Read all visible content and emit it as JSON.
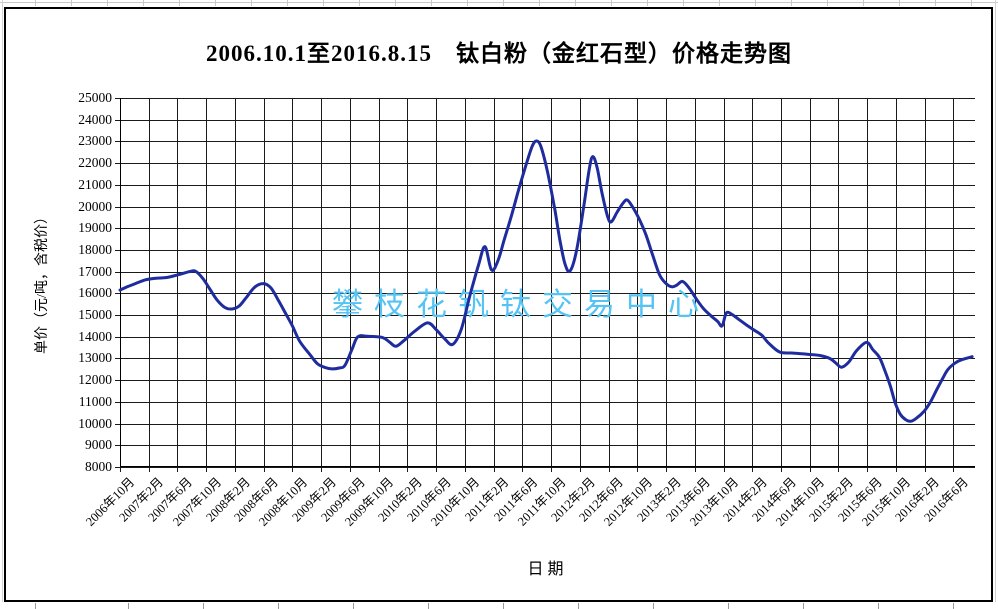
{
  "chart_data": {
    "type": "line",
    "title": "2006.10.1至2016.8.15　钛白粉（金红石型）价格走势图",
    "xlabel": "日期",
    "ylabel": "单价（元/吨，含税价）",
    "grid": true,
    "legend_position": "none",
    "xlim": [
      0,
      119
    ],
    "ylim": [
      8000,
      25000
    ],
    "y_tick_step": 1000,
    "y_ticks": [
      8000,
      9000,
      10000,
      11000,
      12000,
      13000,
      14000,
      15000,
      16000,
      17000,
      18000,
      19000,
      20000,
      21000,
      22000,
      23000,
      24000,
      25000
    ],
    "x_tick_positions": [
      0,
      4,
      8,
      12,
      16,
      20,
      24,
      28,
      32,
      36,
      40,
      44,
      48,
      52,
      56,
      60,
      64,
      68,
      72,
      76,
      80,
      84,
      88,
      92,
      96,
      100,
      104,
      108,
      112,
      116
    ],
    "x_tick_labels": [
      "2006年10月",
      "2007年2月",
      "2007年6月",
      "2007年10月",
      "2008年2月",
      "2008年6月",
      "2008年10月",
      "2009年2月",
      "2009年6月",
      "2009年10月",
      "2010年2月",
      "2010年6月",
      "2010年10月",
      "2011年2月",
      "2011年6月",
      "2011年10月",
      "2012年2月",
      "2012年6月",
      "2012年10月",
      "2013年2月",
      "2013年6月",
      "2013年10月",
      "2014年2月",
      "2014年6月",
      "2014年10月",
      "2015年2月",
      "2015年6月",
      "2015年10月",
      "2016年2月",
      "2016年6月"
    ],
    "watermark": {
      "text": "攀枝花钒钛交易中心",
      "color": "#55c3f3"
    },
    "colors": {
      "line": "#1f2c9e",
      "grid": "#1a1a1a",
      "text": "#000000"
    },
    "series": [
      {
        "name": "钛白粉（金红石型）价格（元/吨）",
        "color": "#1f2c9e",
        "x_unit": "months since 2006-10",
        "points": [
          [
            0,
            16150
          ],
          [
            1,
            16300
          ],
          [
            2,
            16430
          ],
          [
            3.5,
            16620
          ],
          [
            5,
            16700
          ],
          [
            6.5,
            16730
          ],
          [
            8,
            16850
          ],
          [
            9.7,
            17000
          ],
          [
            10.5,
            17020
          ],
          [
            11.5,
            16700
          ],
          [
            12.5,
            16200
          ],
          [
            13.5,
            15700
          ],
          [
            14.6,
            15350
          ],
          [
            15.6,
            15280
          ],
          [
            16.6,
            15420
          ],
          [
            17.6,
            15820
          ],
          [
            18.8,
            16300
          ],
          [
            20,
            16450
          ],
          [
            21,
            16250
          ],
          [
            22,
            15700
          ],
          [
            23,
            15100
          ],
          [
            24,
            14500
          ],
          [
            25,
            13800
          ],
          [
            26.5,
            13150
          ],
          [
            27.5,
            12750
          ],
          [
            28.5,
            12590
          ],
          [
            29.5,
            12520
          ],
          [
            30.5,
            12560
          ],
          [
            31.3,
            12680
          ],
          [
            32.3,
            13430
          ],
          [
            33.1,
            14000
          ],
          [
            34.5,
            14020
          ],
          [
            36.5,
            13970
          ],
          [
            37.5,
            13760
          ],
          [
            38.4,
            13560
          ],
          [
            39.5,
            13820
          ],
          [
            41,
            14250
          ],
          [
            42.8,
            14640
          ],
          [
            44,
            14330
          ],
          [
            45.2,
            13900
          ],
          [
            46.3,
            13650
          ],
          [
            47.5,
            14350
          ],
          [
            48.7,
            15900
          ],
          [
            49.9,
            17300
          ],
          [
            50.8,
            18150
          ],
          [
            51.7,
            17080
          ],
          [
            52.6,
            17500
          ],
          [
            53.5,
            18500
          ],
          [
            54.5,
            19600
          ],
          [
            55.5,
            20800
          ],
          [
            56.5,
            21900
          ],
          [
            57.4,
            22800
          ],
          [
            58,
            23020
          ],
          [
            58.6,
            22750
          ],
          [
            59.5,
            21600
          ],
          [
            60.5,
            19900
          ],
          [
            61.2,
            18500
          ],
          [
            61.9,
            17400
          ],
          [
            62.6,
            17020
          ],
          [
            63.5,
            17900
          ],
          [
            64.5,
            19900
          ],
          [
            65.3,
            21700
          ],
          [
            65.8,
            22300
          ],
          [
            66.4,
            21800
          ],
          [
            67.1,
            20600
          ],
          [
            67.9,
            19500
          ],
          [
            68.4,
            19300
          ],
          [
            69.2,
            19750
          ],
          [
            70,
            20150
          ],
          [
            70.6,
            20300
          ],
          [
            71.4,
            19950
          ],
          [
            72.3,
            19400
          ],
          [
            73.2,
            18700
          ],
          [
            74.1,
            17800
          ],
          [
            75.1,
            16850
          ],
          [
            76,
            16450
          ],
          [
            76.8,
            16300
          ],
          [
            77.5,
            16380
          ],
          [
            78.3,
            16550
          ],
          [
            79.2,
            16250
          ],
          [
            80.2,
            15750
          ],
          [
            81.2,
            15300
          ],
          [
            82.3,
            14950
          ],
          [
            83.2,
            14700
          ],
          [
            83.8,
            14500
          ],
          [
            84.4,
            15100
          ],
          [
            85.2,
            15020
          ],
          [
            86.2,
            14780
          ],
          [
            87.3,
            14520
          ],
          [
            88.3,
            14300
          ],
          [
            89.3,
            14080
          ],
          [
            90.3,
            13700
          ],
          [
            91.8,
            13300
          ],
          [
            93.5,
            13250
          ],
          [
            95.5,
            13200
          ],
          [
            97.5,
            13130
          ],
          [
            98.8,
            13000
          ],
          [
            99.6,
            12800
          ],
          [
            100.4,
            12600
          ],
          [
            101.4,
            12820
          ],
          [
            102.5,
            13350
          ],
          [
            103.9,
            13740
          ],
          [
            104.8,
            13400
          ],
          [
            105.7,
            13050
          ],
          [
            106.5,
            12400
          ],
          [
            107.2,
            11750
          ],
          [
            107.9,
            10950
          ],
          [
            108.6,
            10430
          ],
          [
            109.4,
            10170
          ],
          [
            110.1,
            10110
          ],
          [
            110.9,
            10260
          ],
          [
            111.9,
            10560
          ],
          [
            112.8,
            11000
          ],
          [
            113.7,
            11580
          ],
          [
            114.5,
            12080
          ],
          [
            115.2,
            12480
          ],
          [
            116.2,
            12780
          ],
          [
            117.2,
            12950
          ],
          [
            118.6,
            13080
          ]
        ]
      }
    ]
  }
}
